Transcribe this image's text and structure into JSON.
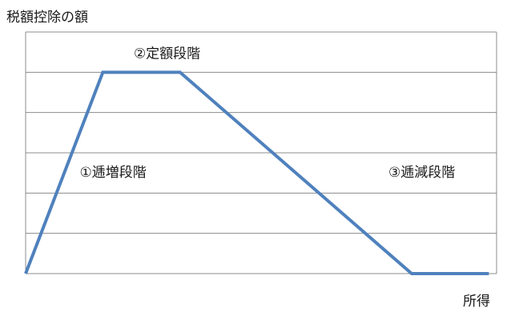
{
  "chart_data": {
    "type": "line",
    "ylabel": "税額控除の額",
    "xlabel": "所得",
    "grid": true,
    "line_color": "#4F81BD",
    "x": [
      0,
      1,
      2,
      5,
      6
    ],
    "values": [
      0,
      1,
      1,
      0,
      0
    ],
    "annotations": [
      {
        "text": "①逓増段階",
        "x": 0.7,
        "y": 0.48
      },
      {
        "text": "②定額段階",
        "x": 1.4,
        "y": 1.07
      },
      {
        "text": "③逓減段階",
        "x": 4.7,
        "y": 0.48
      }
    ]
  }
}
